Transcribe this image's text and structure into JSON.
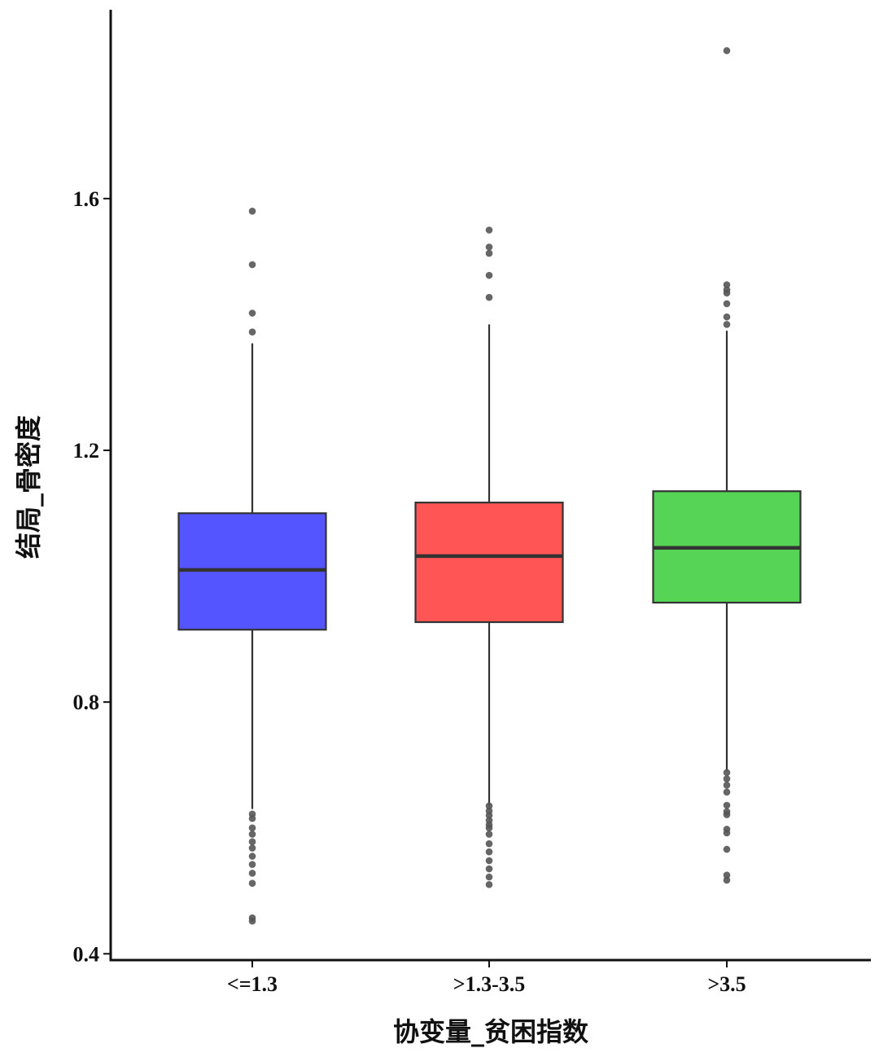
{
  "chart_data": {
    "type": "boxplot",
    "xlabel": "协变量_贫困指数",
    "ylabel": "结局_骨密度",
    "yticks": [
      0.4,
      0.8,
      1.2,
      1.6
    ],
    "ylim": [
      0.39,
      1.9
    ],
    "grid": false,
    "legend": "none",
    "categories": [
      "<=1.3",
      ">1.3-3.5",
      ">3.5"
    ],
    "boxes": [
      {
        "category": "<=1.3",
        "color": "#5555ff",
        "whisker_low": 0.63,
        "q1": 0.915,
        "median": 1.01,
        "q3": 1.1,
        "whisker_high": 1.37,
        "outliers": [
          1.58,
          1.495,
          1.418,
          1.388,
          0.622,
          0.615,
          0.6,
          0.59,
          0.578,
          0.568,
          0.555,
          0.542,
          0.528,
          0.512,
          0.457,
          0.452
        ]
      },
      {
        "category": ">1.3-3.5",
        "color": "#ff5555",
        "whisker_low": 0.635,
        "q1": 0.927,
        "median": 1.032,
        "q3": 1.117,
        "whisker_high": 1.4,
        "outliers": [
          1.55,
          1.523,
          1.513,
          1.478,
          1.443,
          0.635,
          0.627,
          0.62,
          0.612,
          0.605,
          0.6,
          0.59,
          0.575,
          0.562,
          0.548,
          0.535,
          0.522,
          0.51
        ]
      },
      {
        "category": ">3.5",
        "color": "#55d455",
        "whisker_low": 0.69,
        "q1": 0.958,
        "median": 1.045,
        "q3": 1.135,
        "whisker_high": 1.39,
        "outliers": [
          1.835,
          1.463,
          1.455,
          1.45,
          1.433,
          1.412,
          1.4,
          0.688,
          0.678,
          0.668,
          0.657,
          0.636,
          0.626,
          0.621,
          0.598,
          0.592,
          0.566,
          0.525,
          0.517
        ]
      }
    ]
  }
}
